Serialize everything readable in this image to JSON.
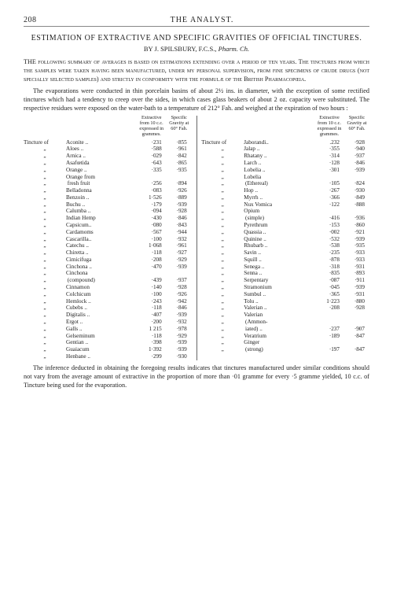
{
  "header": {
    "page": "208",
    "journal": "THE ANALYST."
  },
  "title": "ESTIMATION OF EXTRACTIVE AND SPECIFIC GRAVITIES OF OFFICIAL TINCTURES.",
  "byline": {
    "prefix": "BY ",
    "author": "J. SPILSBURY, F.C.S., ",
    "suffix": "Pharm. Ch."
  },
  "para1": "THE following summary of averages is based on estimations extending over a period of ten years.   The tinctures from which the samples were taken having been manufactured, under my personal supervision, from fine specimens of crude drugs (not specially selected samples) and strictly in conformity with the formulæ of the British Pharmacopœia.",
  "para2": "The evaporations were conducted in thin porcelain basins of about 2½ ins. in diameter, with the exception of some rectified tinctures which had a tendency to creep over the sides, in which cases glass beakers of about 2 oz. capacity were substituted.   The respective residues were exposed on the water-bath to a temperature of 212° Fah. and weighed at the expiration of two hours :",
  "colheads": {
    "h1": "Extractive from 10 c.c. expressed in grammes.",
    "h2": "Specific Gravity at 60° Fah."
  },
  "leftPrefix": "Tincture of ",
  "left": [
    {
      "n": "Aconite ..",
      "e": "·231",
      "g": "·855"
    },
    {
      "n": "Aloes  ..",
      "e": "·588",
      "g": "·961"
    },
    {
      "n": "Arnica ..",
      "e": "·029",
      "g": "·842"
    },
    {
      "n": "Asafœtida",
      "e": "·643",
      "g": "·865"
    },
    {
      "n": "Orange  ..",
      "e": "·335",
      "g": "·935"
    },
    {
      "n": "Orange from",
      "e": "",
      "g": ""
    },
    {
      "n": "  fresh fruit",
      "e": "·256",
      "g": "·894"
    },
    {
      "n": "Belladonna",
      "e": "·083",
      "g": "·926"
    },
    {
      "n": "Benzoin ..",
      "e": "1·526",
      "g": "·889"
    },
    {
      "n": "Buchu  ..",
      "e": "·179",
      "g": "·939"
    },
    {
      "n": "Calumba ..",
      "e": "·094",
      "g": "·928"
    },
    {
      "n": "Indian Hemp",
      "e": "·430",
      "g": "·846"
    },
    {
      "n": "Capsicum..",
      "e": "·080",
      "g": "·843"
    },
    {
      "n": "Cardamoms",
      "e": "·567",
      "g": "·944"
    },
    {
      "n": "Cascarilla..",
      "e": "·100",
      "g": "·932"
    },
    {
      "n": "Catechu ..",
      "e": "1·068",
      "g": "·961"
    },
    {
      "n": "Chiretta ..",
      "e": "·118",
      "g": "·927"
    },
    {
      "n": "Cimicifuga",
      "e": "·208",
      "g": "·929"
    },
    {
      "n": "Cinchona ..",
      "e": "·470",
      "g": "·939"
    },
    {
      "n": "Cinchona",
      "e": "",
      "g": ""
    },
    {
      "n": " (compound)",
      "e": "·439",
      "g": "·937"
    },
    {
      "n": "Cinnamon",
      "e": "·140",
      "g": "·928"
    },
    {
      "n": "Colchicum",
      "e": "·100",
      "g": "·926"
    },
    {
      "n": "Hemlock ..",
      "e": "·243",
      "g": "·942"
    },
    {
      "n": "Cubebs  ..",
      "e": "·118",
      "g": "·846"
    },
    {
      "n": "Digitalis ..",
      "e": "·407",
      "g": "·939"
    },
    {
      "n": "Ergot  ..",
      "e": "·200",
      "g": "·932"
    },
    {
      "n": "Galls  ..",
      "e": "1 215",
      "g": "·978"
    },
    {
      "n": "Gelseminum",
      "e": "·118",
      "g": "·929"
    },
    {
      "n": "Gentian ..",
      "e": "·398",
      "g": "·939"
    },
    {
      "n": "Guaiacum",
      "e": "1·392",
      "g": "·939"
    },
    {
      "n": "Henbane ..",
      "e": "·299",
      "g": "·930"
    }
  ],
  "rightPrefix": "Tincture of ",
  "right": [
    {
      "n": "Jaborandi..",
      "e": ".232",
      "g": "·928"
    },
    {
      "n": "Jalap  ..",
      "e": "·355",
      "g": "·940"
    },
    {
      "n": "Rhatany ..",
      "e": "·314",
      "g": "·937"
    },
    {
      "n": "Larch  ..",
      "e": "·128",
      "g": "·846"
    },
    {
      "n": "Lobelia  ..",
      "e": "·301",
      "g": "·939"
    },
    {
      "n": "Lobelia",
      "e": "",
      "g": ""
    },
    {
      "n": " (Ethereal)",
      "e": "·105",
      "g": "·824"
    },
    {
      "n": "Hop  ..",
      "e": "·267",
      "g": "·930"
    },
    {
      "n": "Myrrh  ..",
      "e": "·366",
      "g": "·849"
    },
    {
      "n": "Nux Vomica",
      "e": "·122",
      "g": "·888"
    },
    {
      "n": "Opium",
      "e": "",
      "g": ""
    },
    {
      "n": "  (simple)",
      "e": "·416",
      "g": "·936"
    },
    {
      "n": "Pyrethrum",
      "e": "·153",
      "g": "·860"
    },
    {
      "n": "Quassia ..",
      "e": "·002",
      "g": "·921"
    },
    {
      "n": "Quinine ..",
      "e": "·532",
      "g": "·939"
    },
    {
      "n": "Rhubarb ..",
      "e": "·538",
      "g": "·935"
    },
    {
      "n": "Savin  ..",
      "e": "·235",
      "g": "·933"
    },
    {
      "n": "Squill  ..",
      "e": "·878",
      "g": "·933"
    },
    {
      "n": "Senega  ..",
      "e": "·318",
      "g": "·931"
    },
    {
      "n": "Senna  ..",
      "e": "·835",
      "g": "·893"
    },
    {
      "n": "Serpentary",
      "e": "·087",
      "g": "·911"
    },
    {
      "n": "Stramonium",
      "e": "·045",
      "g": "·939"
    },
    {
      "n": "Sumbul  ..",
      "e": "·365",
      "g": "·931"
    },
    {
      "n": "Tolu  ..",
      "e": "1·223",
      "g": "·880"
    },
    {
      "n": "Valerian ..",
      "e": "·208",
      "g": "·928"
    },
    {
      "n": "Valerian",
      "e": "",
      "g": ""
    },
    {
      "n": " (Ammon-",
      "e": "",
      "g": ""
    },
    {
      "n": "   iated) ..",
      "e": "·237",
      "g": "·907"
    },
    {
      "n": "Veratrium",
      "e": "·189",
      "g": "·847"
    },
    {
      "n": "Ginger",
      "e": "",
      "g": ""
    },
    {
      "n": "  (strong)",
      "e": "·197",
      "g": "·847"
    }
  ],
  "footer": "The inference deducted in obtaining the foregoing results indicates that tinctures manufactured under similar conditions should not vary from the average amount of extractive in the proportion of more than ·01 gramme for every ·5 gramme yielded, 10 c.c. of Tincture being used for the evaporation."
}
